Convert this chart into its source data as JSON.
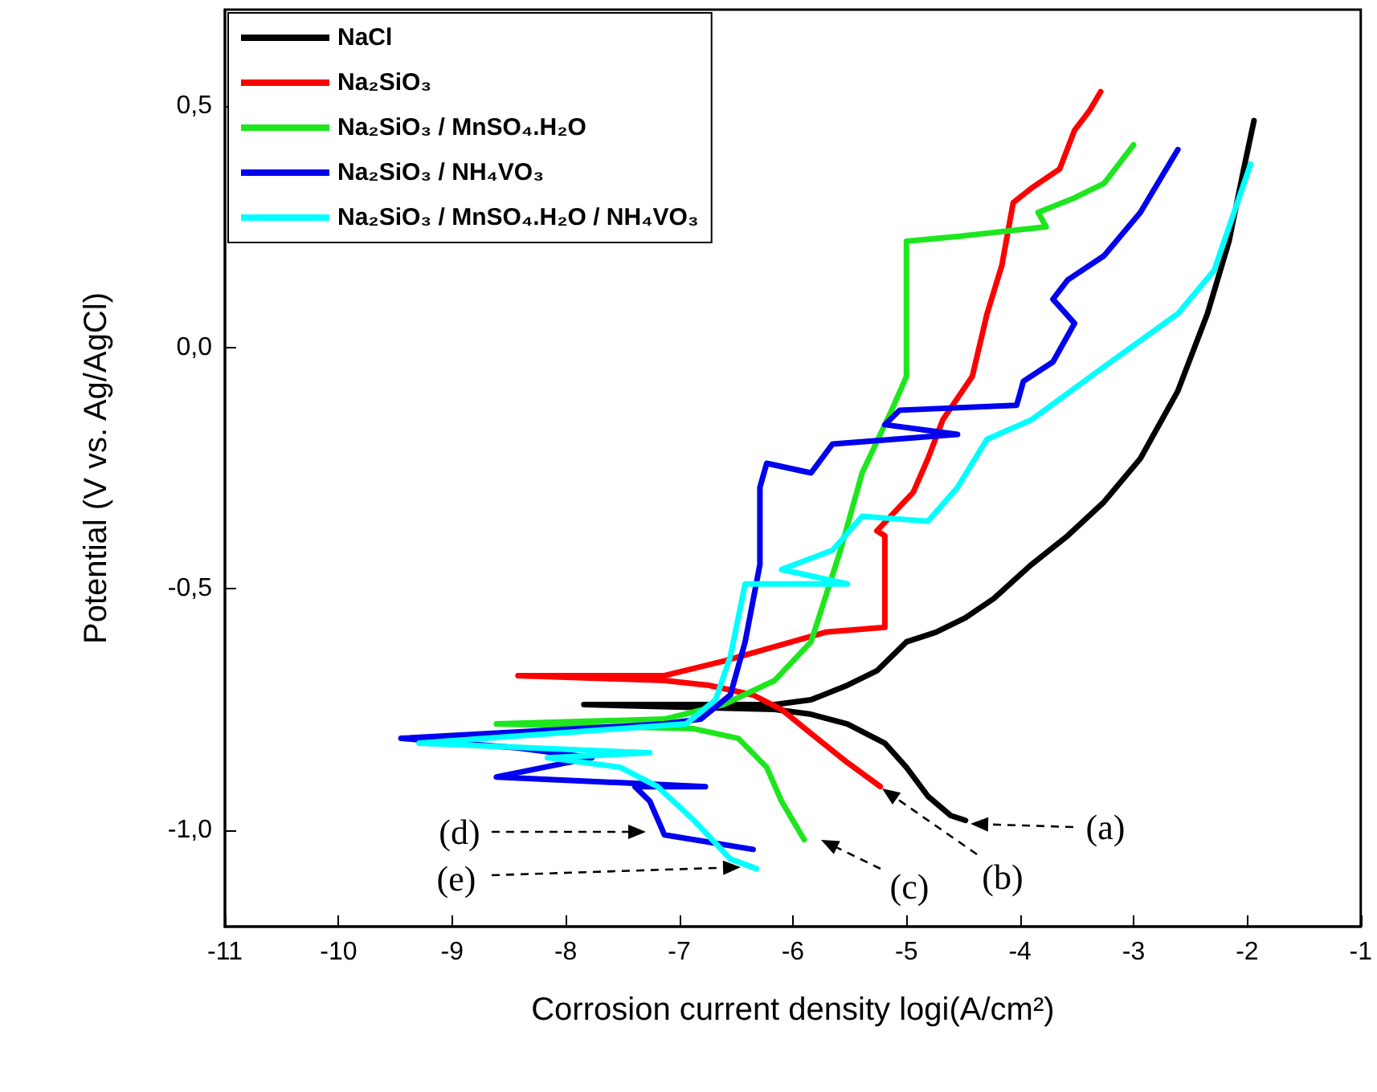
{
  "chart_data": {
    "type": "line",
    "xlabel": "Corrosion current density logi(A/cm²)",
    "ylabel": "Potential (V vs. Ag/AgCl)",
    "xlim": [
      -11,
      -1
    ],
    "xticks": [
      -11,
      -10,
      -9,
      -8,
      -7,
      -6,
      -5,
      -4,
      -3,
      -2,
      -1
    ],
    "ylim": [
      -1.2,
      0.7
    ],
    "yticks": [
      {
        "value": -1,
        "label": "-1,0"
      },
      {
        "value": -0.5,
        "label": "-0,5"
      },
      {
        "value": 0,
        "label": "0,0"
      },
      {
        "value": 0.5,
        "label": "0,5"
      }
    ],
    "grid": false,
    "legend": "top left",
    "series": [
      {
        "name": "NaCl",
        "color": "#000000",
        "x": [
          -4.48,
          -4.61,
          -4.81,
          -5.0,
          -5.19,
          -5.52,
          -5.84,
          -6.16,
          -7.84,
          -6.16,
          -5.84,
          -5.52,
          -5.26,
          -5.0,
          -4.74,
          -4.48,
          -4.23,
          -3.9,
          -3.58,
          -3.26,
          -2.94,
          -2.61,
          -2.35,
          -2.16,
          -2.03,
          -1.94
        ],
        "values": [
          -0.98,
          -0.97,
          -0.93,
          -0.87,
          -0.82,
          -0.78,
          -0.76,
          -0.75,
          -0.74,
          -0.74,
          -0.73,
          -0.7,
          -0.67,
          -0.61,
          -0.59,
          -0.56,
          -0.52,
          -0.45,
          -0.39,
          -0.32,
          -0.23,
          -0.09,
          0.07,
          0.22,
          0.37,
          0.47
        ]
      },
      {
        "name": "Na₂SiO₃",
        "color": "#ff0000",
        "x": [
          -5.23,
          -5.52,
          -5.84,
          -6.1,
          -6.35,
          -6.74,
          -7.13,
          -8.42,
          -7.13,
          -6.61,
          -6.16,
          -5.71,
          -5.19,
          -5.19,
          -5.26,
          -4.94,
          -4.81,
          -4.68,
          -4.42,
          -4.29,
          -4.16,
          -4.06,
          -3.9,
          -3.65,
          -3.52,
          -3.39,
          -3.29
        ],
        "values": [
          -0.91,
          -0.86,
          -0.8,
          -0.75,
          -0.72,
          -0.7,
          -0.69,
          -0.68,
          -0.68,
          -0.65,
          -0.62,
          -0.59,
          -0.58,
          -0.39,
          -0.38,
          -0.3,
          -0.23,
          -0.15,
          -0.06,
          0.07,
          0.17,
          0.3,
          0.33,
          0.37,
          0.45,
          0.49,
          0.53
        ]
      },
      {
        "name": "Na₂SiO₃ / MnSO₄.H₂O",
        "color": "#1ee61e",
        "x": [
          -5.9,
          -6.1,
          -6.23,
          -6.48,
          -6.87,
          -8.61,
          -7.13,
          -6.61,
          -6.16,
          -5.84,
          -5.58,
          -5.39,
          -5.13,
          -5.0,
          -5.0,
          -4.55,
          -3.77,
          -3.84,
          -3.52,
          -3.26,
          -3.0
        ],
        "values": [
          -1.02,
          -0.94,
          -0.87,
          -0.81,
          -0.79,
          -0.78,
          -0.77,
          -0.74,
          -0.69,
          -0.61,
          -0.42,
          -0.26,
          -0.13,
          -0.06,
          0.22,
          0.23,
          0.25,
          0.28,
          0.31,
          0.34,
          0.42
        ]
      },
      {
        "name": "Na₂SiO₃ / NH₄VO₃",
        "color": "#0000ee",
        "x": [
          -6.35,
          -7.13,
          -7.26,
          -7.39,
          -6.77,
          -8.61,
          -7.77,
          -8.42,
          -9.45,
          -7.13,
          -6.81,
          -6.55,
          -6.42,
          -6.29,
          -6.29,
          -6.23,
          -5.84,
          -5.65,
          -4.55,
          -5.19,
          -5.06,
          -4.03,
          -3.97,
          -3.71,
          -3.52,
          -3.71,
          -3.58,
          -3.26,
          -2.94,
          -2.61
        ],
        "values": [
          -1.04,
          -1.01,
          -0.94,
          -0.91,
          -0.91,
          -0.89,
          -0.85,
          -0.83,
          -0.81,
          -0.78,
          -0.77,
          -0.72,
          -0.61,
          -0.45,
          -0.29,
          -0.24,
          -0.26,
          -0.2,
          -0.18,
          -0.16,
          -0.13,
          -0.12,
          -0.07,
          -0.03,
          0.05,
          0.1,
          0.14,
          0.19,
          0.28,
          0.41
        ]
      },
      {
        "name": "Na₂SiO₃ / MnSO₄.H₂O / NH₄VO₃",
        "color": "#00ffff",
        "x": [
          -6.32,
          -6.55,
          -6.87,
          -7.19,
          -7.52,
          -8.16,
          -7.26,
          -9.29,
          -6.94,
          -6.68,
          -6.55,
          -6.42,
          -5.52,
          -6.1,
          -5.65,
          -5.39,
          -4.81,
          -4.55,
          -4.29,
          -3.9,
          -3.26,
          -2.61,
          -2.29,
          -1.97
        ],
        "values": [
          -1.08,
          -1.06,
          -0.98,
          -0.91,
          -0.87,
          -0.85,
          -0.84,
          -0.82,
          -0.78,
          -0.73,
          -0.64,
          -0.49,
          -0.49,
          -0.46,
          -0.42,
          -0.35,
          -0.36,
          -0.29,
          -0.19,
          -0.15,
          -0.04,
          0.07,
          0.16,
          0.38
        ]
      }
    ],
    "annotations": [
      "(a)",
      "(b)",
      "(c)",
      "(d)",
      "(e)"
    ]
  }
}
